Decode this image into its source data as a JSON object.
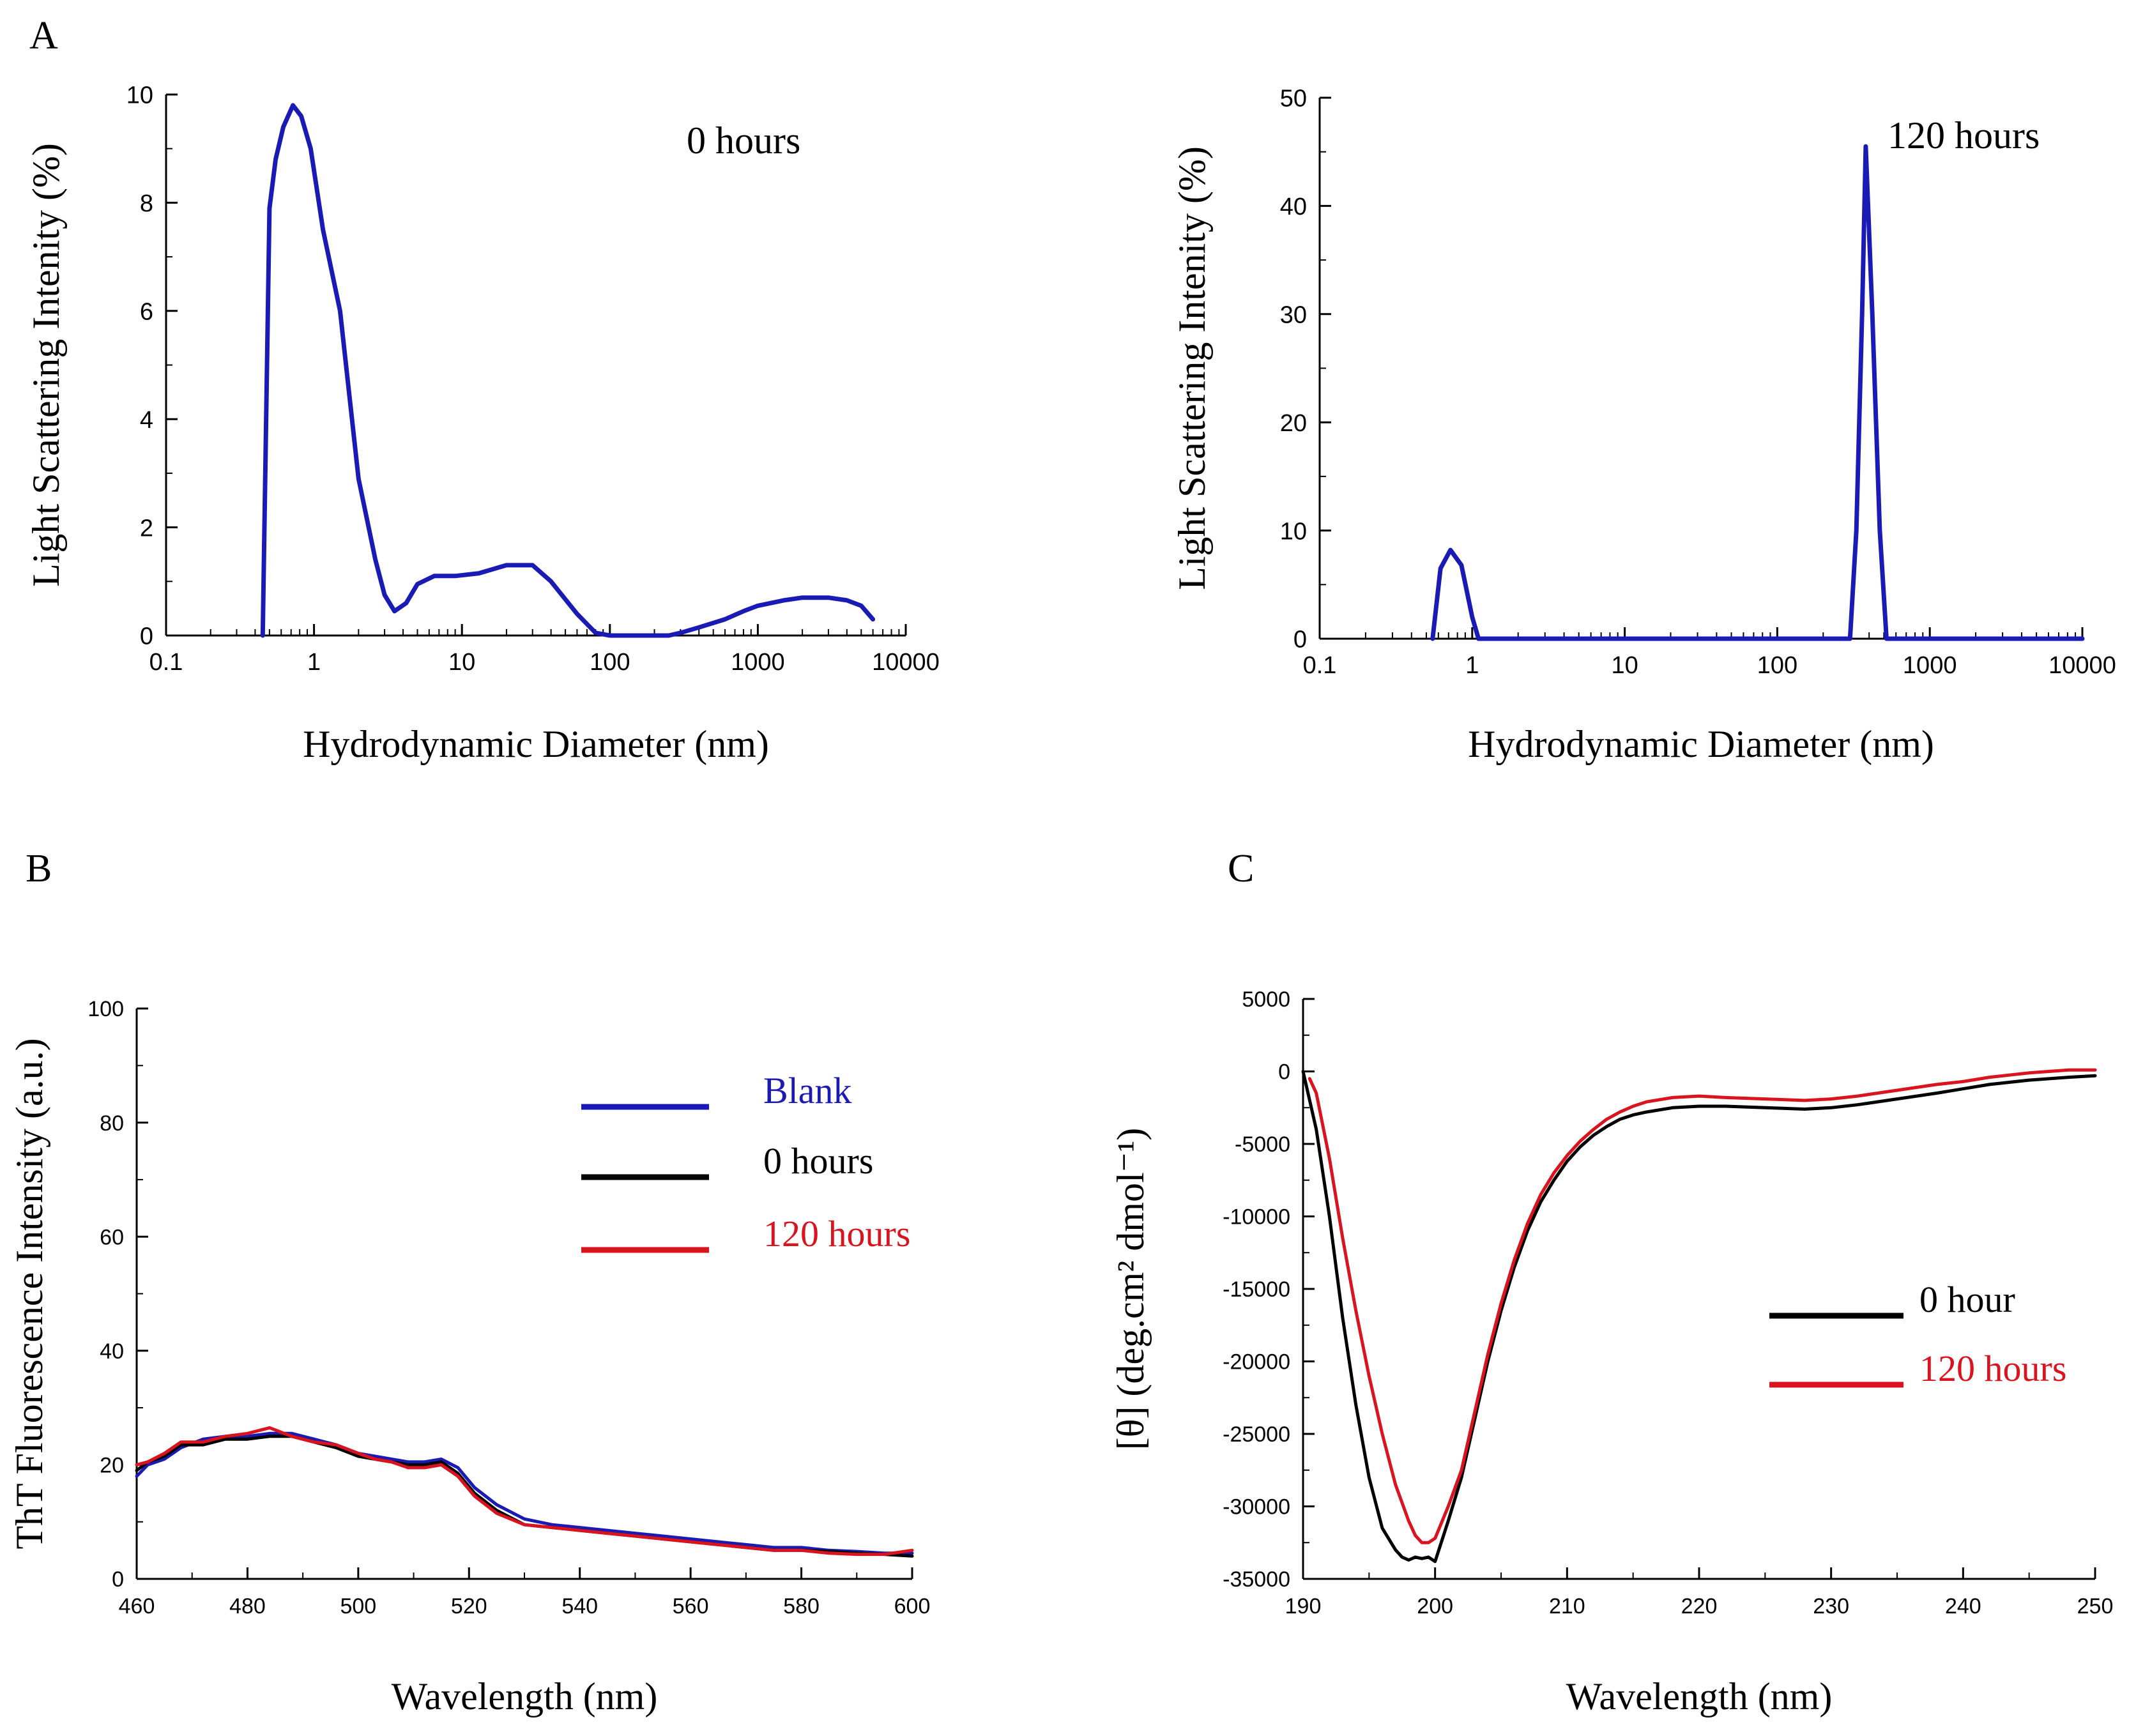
{
  "panels": {
    "A": {
      "label": "A"
    },
    "B": {
      "label": "B"
    },
    "C": {
      "label": "C"
    }
  },
  "colors": {
    "blue": "#1a1ab4",
    "black": "#000000",
    "red": "#d9141e"
  },
  "chart_data": [
    {
      "id": "A0",
      "panel": "A",
      "type": "line",
      "title": "0 hours",
      "xlabel": "Hydrodynamic Diameter (nm)",
      "ylabel": "Light Scattering Intenity (%)",
      "xscale": "log",
      "xlim": [
        0.1,
        10000
      ],
      "ylim": [
        0,
        10
      ],
      "xticks": [
        0.1,
        1,
        10,
        100,
        1000,
        10000
      ],
      "xticklabels": [
        "0.1",
        "1",
        "10",
        "100",
        "1000",
        "10000"
      ],
      "yticks": [
        0,
        2,
        4,
        6,
        8,
        10
      ],
      "yticklabels": [
        "0",
        "2",
        "4",
        "6",
        "8",
        "10"
      ],
      "legend": "none",
      "series": [
        {
          "color": "#1a1ab4",
          "x": [
            0.45,
            0.5,
            0.55,
            0.62,
            0.72,
            0.82,
            0.95,
            1.15,
            1.5,
            2.0,
            2.6,
            3.0,
            3.5,
            4.2,
            5.0,
            6.5,
            9.0,
            13,
            20,
            30,
            40,
            60,
            80,
            100,
            150,
            200,
            250,
            300,
            400,
            600,
            800,
            1000,
            1500,
            2000,
            3000,
            4000,
            5000,
            6000
          ],
          "y": [
            0,
            7.9,
            8.8,
            9.4,
            9.8,
            9.6,
            9.0,
            7.5,
            6.0,
            2.9,
            1.4,
            0.75,
            0.45,
            0.6,
            0.95,
            1.1,
            1.1,
            1.15,
            1.3,
            1.3,
            1.0,
            0.4,
            0.05,
            0,
            0,
            0,
            0,
            0.05,
            0.15,
            0.3,
            0.45,
            0.55,
            0.65,
            0.7,
            0.7,
            0.65,
            0.55,
            0.3
          ]
        }
      ]
    },
    {
      "id": "A120",
      "panel": "A",
      "type": "line",
      "title": "120 hours",
      "xlabel": "Hydrodynamic Diameter (nm)",
      "ylabel": "Light Scattering Intenity (%)",
      "xscale": "log",
      "xlim": [
        0.1,
        10000
      ],
      "ylim": [
        0,
        50
      ],
      "xticks": [
        0.1,
        1,
        10,
        100,
        1000,
        10000
      ],
      "xticklabels": [
        "0.1",
        "1",
        "10",
        "100",
        "1000",
        "10000"
      ],
      "yticks": [
        0,
        10,
        20,
        30,
        40,
        50
      ],
      "yticklabels": [
        "0",
        "10",
        "20",
        "30",
        "40",
        "50"
      ],
      "legend": "none",
      "series": [
        {
          "color": "#1a1ab4",
          "x": [
            0.55,
            0.62,
            0.72,
            0.85,
            1.0,
            1.1,
            2,
            10,
            100,
            300,
            330,
            360,
            380,
            420,
            470,
            520,
            1000,
            10000
          ],
          "y": [
            0,
            6.5,
            8.2,
            6.8,
            2,
            0,
            0,
            0,
            0,
            0,
            10,
            30,
            45.5,
            30,
            10,
            0,
            0,
            0
          ]
        }
      ]
    },
    {
      "id": "B",
      "panel": "B",
      "type": "line",
      "title": "",
      "xlabel": "Wavelength (nm)",
      "ylabel": "ThT Fluorescence Intensity (a.u.)",
      "xlim": [
        460,
        600
      ],
      "ylim": [
        0,
        100
      ],
      "xticks": [
        460,
        480,
        500,
        520,
        540,
        560,
        580,
        600
      ],
      "xticklabels": [
        "460",
        "480",
        "500",
        "520",
        "540",
        "560",
        "580",
        "600"
      ],
      "yticks": [
        0,
        20,
        40,
        60,
        80,
        100
      ],
      "yticklabels": [
        "0",
        "20",
        "40",
        "60",
        "80",
        "100"
      ],
      "legend": "right",
      "series": [
        {
          "name": "Blank",
          "color": "#1a1ab4",
          "x": [
            460,
            462,
            465,
            468,
            472,
            476,
            480,
            484,
            488,
            492,
            496,
            500,
            503,
            506,
            509,
            512,
            515,
            518,
            521,
            525,
            530,
            535,
            540,
            545,
            550,
            555,
            560,
            565,
            570,
            575,
            580,
            585,
            590,
            595,
            600
          ],
          "y": [
            18,
            20,
            21,
            23,
            24.5,
            25,
            25,
            25.5,
            25.5,
            24.5,
            23.5,
            22,
            21.5,
            21,
            20.5,
            20.5,
            21,
            19.5,
            16,
            13,
            10.5,
            9.5,
            9,
            8.5,
            8,
            7.5,
            7,
            6.5,
            6,
            5.5,
            5.5,
            5,
            4.8,
            4.5,
            4.5
          ]
        },
        {
          "name": "0 hours",
          "color": "#000000",
          "x": [
            460,
            462,
            465,
            468,
            472,
            476,
            480,
            484,
            488,
            492,
            496,
            500,
            503,
            506,
            509,
            512,
            515,
            518,
            521,
            525,
            530,
            535,
            540,
            545,
            550,
            555,
            560,
            565,
            570,
            575,
            580,
            585,
            590,
            595,
            600
          ],
          "y": [
            19,
            20.5,
            21.5,
            23.5,
            23.5,
            24.5,
            24.5,
            25,
            25,
            24,
            23,
            21.5,
            21,
            20.5,
            20,
            20,
            20.5,
            18.5,
            15,
            12,
            9.5,
            9,
            8.5,
            8,
            7.5,
            7,
            6.5,
            6,
            5.5,
            5,
            5,
            4.8,
            4.5,
            4.3,
            4
          ]
        },
        {
          "name": "120 hours",
          "color": "#d9141e",
          "x": [
            460,
            462,
            465,
            468,
            472,
            476,
            480,
            484,
            488,
            492,
            496,
            500,
            503,
            506,
            509,
            512,
            515,
            518,
            521,
            525,
            530,
            535,
            540,
            545,
            550,
            555,
            560,
            565,
            570,
            575,
            580,
            585,
            590,
            595,
            600
          ],
          "y": [
            20,
            20.5,
            22,
            24,
            24,
            25,
            25.5,
            26.5,
            25,
            24,
            23.5,
            22,
            21,
            20.5,
            19.5,
            19.5,
            20,
            18,
            14.5,
            11.5,
            9.5,
            9,
            8.5,
            8,
            7.5,
            7,
            6.5,
            6,
            5.5,
            5,
            5,
            4.5,
            4.3,
            4.3,
            5
          ]
        }
      ]
    },
    {
      "id": "C",
      "panel": "C",
      "type": "line",
      "title": "",
      "xlabel": "Wavelength (nm)",
      "ylabel": "[θ] (deg.cm² dmol⁻¹)",
      "xlim": [
        190,
        250
      ],
      "ylim": [
        -35000,
        5000
      ],
      "xticks": [
        190,
        200,
        210,
        220,
        230,
        240,
        250
      ],
      "xticklabels": [
        "190",
        "200",
        "210",
        "220",
        "230",
        "240",
        "250"
      ],
      "yticks": [
        5000,
        0,
        -5000,
        -10000,
        -15000,
        -20000,
        -25000,
        -30000,
        -35000
      ],
      "yticklabels": [
        "5000",
        "0",
        "-5000",
        "-10000",
        "-15000",
        "-20000",
        "-25000",
        "-30000",
        "-35000"
      ],
      "legend": "right",
      "series": [
        {
          "name": "0 hour",
          "color": "#000000",
          "x": [
            190,
            191,
            192,
            193,
            194,
            195,
            196,
            197,
            197.5,
            198,
            198.5,
            199,
            199.5,
            200,
            201,
            202,
            203,
            204,
            205,
            206,
            207,
            208,
            209,
            210,
            211,
            212,
            213,
            214,
            215,
            216,
            218,
            220,
            222,
            225,
            228,
            230,
            232,
            235,
            238,
            240,
            242,
            245,
            248,
            250
          ],
          "y": [
            0,
            -4000,
            -10000,
            -17000,
            -23000,
            -28000,
            -31500,
            -33000,
            -33500,
            -33700,
            -33500,
            -33600,
            -33500,
            -33800,
            -31000,
            -28000,
            -24000,
            -20000,
            -16500,
            -13500,
            -11000,
            -9000,
            -7500,
            -6200,
            -5200,
            -4400,
            -3800,
            -3300,
            -3000,
            -2800,
            -2500,
            -2400,
            -2400,
            -2500,
            -2600,
            -2500,
            -2300,
            -1900,
            -1500,
            -1200,
            -900,
            -600,
            -400,
            -300
          ]
        },
        {
          "name": "120 hours",
          "color": "#d9141e",
          "x": [
            190.5,
            191,
            192,
            193,
            194,
            195,
            196,
            197,
            198,
            198.5,
            199,
            199.5,
            200,
            201,
            202,
            203,
            204,
            205,
            206,
            207,
            208,
            209,
            210,
            211,
            212,
            213,
            214,
            215,
            216,
            218,
            220,
            222,
            225,
            228,
            230,
            232,
            235,
            238,
            240,
            242,
            245,
            248,
            250
          ],
          "y": [
            -500,
            -1500,
            -6000,
            -11500,
            -16500,
            -21000,
            -25000,
            -28500,
            -31000,
            -32000,
            -32500,
            -32500,
            -32200,
            -30000,
            -27500,
            -23500,
            -19500,
            -16000,
            -13000,
            -10500,
            -8500,
            -7000,
            -5800,
            -4800,
            -4000,
            -3300,
            -2800,
            -2400,
            -2100,
            -1800,
            -1700,
            -1800,
            -1900,
            -2000,
            -1900,
            -1700,
            -1300,
            -900,
            -700,
            -400,
            -100,
            100,
            100
          ]
        }
      ]
    }
  ]
}
